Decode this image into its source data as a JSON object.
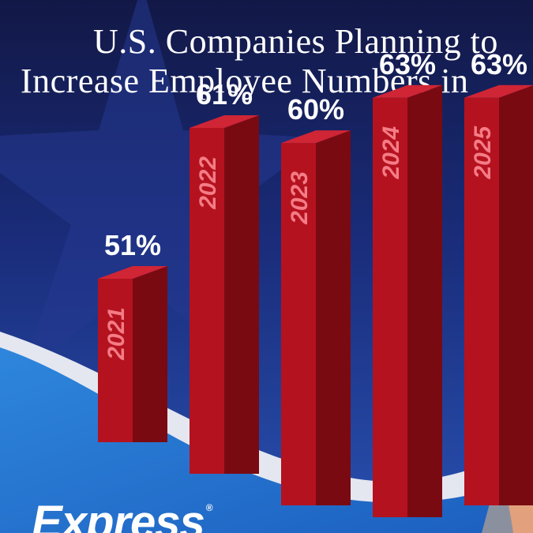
{
  "title": {
    "line1": "U.S. Companies Planning to",
    "line2": "Increase Employee Numbers in"
  },
  "brand": {
    "name": "Express",
    "mark": "®"
  },
  "colors": {
    "background_top": "#141a52",
    "background_mid": "#1e3f9a",
    "swoosh_light": "#e6e9f2",
    "swoosh_blue": "#2a7fd6",
    "bar_front": "#b5121f",
    "bar_side": "#7a0a12",
    "bar_top": "#d02535",
    "year_text": "#f47c86",
    "arrow": "#8a8f9c"
  },
  "chart_data": {
    "type": "bar",
    "categories": [
      "2021",
      "2022",
      "2023",
      "2024",
      "2025"
    ],
    "values": [
      51,
      61,
      60,
      63,
      63
    ],
    "value_labels": [
      "51%",
      "61%",
      "60%",
      "63%",
      "63%"
    ],
    "title": "U.S. Companies Planning to Increase Employee Numbers in",
    "xlabel": "",
    "ylabel": "",
    "grid": false,
    "legend": "none"
  }
}
